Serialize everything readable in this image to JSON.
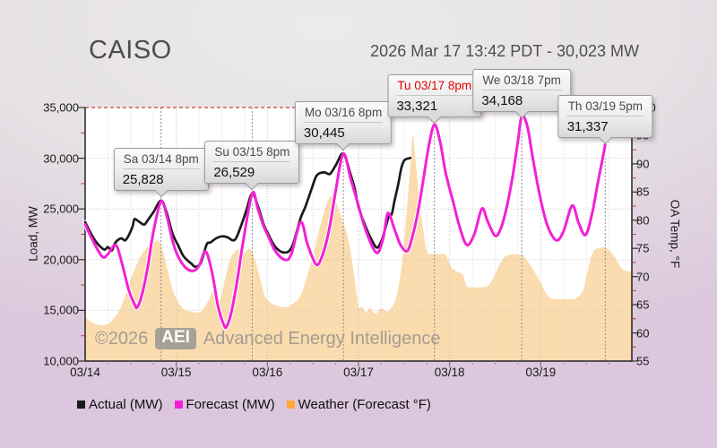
{
  "header": {
    "title": "CAISO",
    "status_line": "2026 Mar 17 13:42 PDT - 30,023 MW"
  },
  "watermark": {
    "copyright": "©2026",
    "badge": "AEI",
    "name": "Advanced Energy Intelligence"
  },
  "colors": {
    "actual": "#1a1a1a",
    "forecast": "#f320d6",
    "weather_fill": "#fbdcae",
    "weather_legend": "#ffaa33",
    "alert_line": "#cc4040",
    "callout_highlight": "#dd0000"
  },
  "axes": {
    "left_title": "Load, MW",
    "right_title": "OA Temp, °F",
    "left_tick_labels": [
      "10,000",
      "15,000",
      "20,000",
      "25,000",
      "30,000",
      "35,000"
    ],
    "left_tick_values": [
      10000,
      15000,
      20000,
      25000,
      30000,
      35000
    ],
    "right_tick_labels": [
      "55",
      "60",
      "65",
      "70",
      "75",
      "80",
      "85",
      "90",
      "95",
      "100"
    ],
    "right_tick_values": [
      55,
      60,
      65,
      70,
      75,
      80,
      85,
      90,
      95,
      100
    ],
    "x_tick_labels": [
      "03/14",
      "03/15",
      "03/16",
      "03/17",
      "03/18",
      "03/19"
    ]
  },
  "legend": [
    {
      "label": "Actual (MW)",
      "color_key": "actual"
    },
    {
      "label": "Forecast (MW)",
      "color_key": "forecast"
    },
    {
      "label": "Weather (Forecast °F)",
      "color_key": "weather_legend"
    }
  ],
  "callouts": [
    {
      "title": "Sa 03/14 8pm",
      "value": "25,828",
      "hour": 20,
      "highlight": false
    },
    {
      "title": "Su 03/15 8pm",
      "value": "26,529",
      "hour": 44,
      "highlight": false
    },
    {
      "title": "Mo 03/16 8pm",
      "value": "30,445",
      "hour": 68,
      "highlight": false
    },
    {
      "title": "Tu 03/17 8pm",
      "value": "33,321",
      "hour": 92,
      "highlight": true
    },
    {
      "title": "We 03/18 7pm",
      "value": "34,168",
      "hour": 115,
      "highlight": false
    },
    {
      "title": "Th 03/19 5pm",
      "value": "31,337",
      "hour": 137,
      "highlight": false
    }
  ],
  "chart_data": {
    "type": "line",
    "title": "CAISO",
    "subtitle": "2026 Mar 17 13:42 PDT - 30,023 MW",
    "x_axis": {
      "unit": "hours since 2026-03-14 00:00",
      "range": [
        0,
        144
      ],
      "day_labels": [
        "03/14",
        "03/15",
        "03/16",
        "03/17",
        "03/18",
        "03/19"
      ]
    },
    "y_left": {
      "label": "Load, MW",
      "range": [
        10000,
        35000
      ],
      "grid": "dotted"
    },
    "y_right": {
      "label": "OA Temp, °F",
      "range": [
        55,
        100
      ]
    },
    "legend_position": "bottom-left",
    "series": [
      {
        "name": "Actual (MW)",
        "type": "line",
        "axis": "left",
        "color_key": "actual",
        "points": [
          [
            0,
            23700
          ],
          [
            1.5,
            22600
          ],
          [
            3,
            21700
          ],
          [
            5,
            21000
          ],
          [
            6,
            21250
          ],
          [
            7,
            20900
          ],
          [
            8,
            21700
          ],
          [
            9.5,
            22100
          ],
          [
            10.5,
            21900
          ],
          [
            11.5,
            22400
          ],
          [
            12.5,
            23300
          ],
          [
            13,
            24000
          ],
          [
            14,
            23800
          ],
          [
            15.5,
            23450
          ],
          [
            16.5,
            23900
          ],
          [
            18,
            24700
          ],
          [
            20,
            25828
          ],
          [
            21.5,
            24600
          ],
          [
            23,
            22600
          ],
          [
            24.5,
            21400
          ],
          [
            26,
            20300
          ],
          [
            28,
            19600
          ],
          [
            29,
            19300
          ],
          [
            30.5,
            19700
          ],
          [
            32,
            21500
          ],
          [
            33,
            21700
          ],
          [
            34.5,
            22100
          ],
          [
            36,
            22300
          ],
          [
            37.5,
            22200
          ],
          [
            39,
            21900
          ],
          [
            40,
            22300
          ],
          [
            41.5,
            23800
          ],
          [
            42.5,
            24900
          ],
          [
            44,
            26529
          ],
          [
            45.5,
            25300
          ],
          [
            47,
            23500
          ],
          [
            48,
            22700
          ],
          [
            50,
            21300
          ],
          [
            52.5,
            20700
          ],
          [
            54.5,
            21300
          ],
          [
            56.75,
            24100
          ],
          [
            58,
            25200
          ],
          [
            59.5,
            26800
          ],
          [
            61,
            28300
          ],
          [
            63,
            28600
          ],
          [
            64.5,
            28450
          ],
          [
            66,
            29300
          ],
          [
            68,
            30445
          ],
          [
            70,
            28300
          ],
          [
            71,
            27000
          ],
          [
            72,
            25200
          ],
          [
            73.5,
            23600
          ],
          [
            75,
            22300
          ],
          [
            76.75,
            21200
          ],
          [
            78,
            21800
          ],
          [
            79,
            23000
          ],
          [
            80,
            24300
          ],
          [
            80.75,
            24500
          ],
          [
            81.5,
            25800
          ],
          [
            82.5,
            27500
          ],
          [
            83.25,
            29000
          ],
          [
            84,
            29750
          ],
          [
            84.75,
            29950
          ],
          [
            85.7,
            30023
          ]
        ]
      },
      {
        "name": "Forecast (MW)",
        "type": "line",
        "axis": "left",
        "color_key": "forecast",
        "points": [
          [
            0,
            23500
          ],
          [
            2,
            21900
          ],
          [
            4.5,
            20300
          ],
          [
            6,
            20550
          ],
          [
            7.5,
            21350
          ],
          [
            8.5,
            21200
          ],
          [
            10,
            19200
          ],
          [
            11.5,
            17000
          ],
          [
            13,
            15600
          ],
          [
            13.75,
            15300
          ],
          [
            15,
            16600
          ],
          [
            16.5,
            19300
          ],
          [
            18,
            22800
          ],
          [
            20,
            25750
          ],
          [
            21.5,
            24300
          ],
          [
            23,
            21900
          ],
          [
            24.5,
            20300
          ],
          [
            26.5,
            19200
          ],
          [
            28.5,
            18900
          ],
          [
            30,
            19400
          ],
          [
            31.75,
            20800
          ],
          [
            33.5,
            18600
          ],
          [
            35,
            15400
          ],
          [
            36.5,
            13600
          ],
          [
            37.25,
            13400
          ],
          [
            38.5,
            14800
          ],
          [
            40,
            17800
          ],
          [
            41.5,
            21500
          ],
          [
            44,
            26529
          ],
          [
            45.5,
            25000
          ],
          [
            47,
            23300
          ],
          [
            48,
            22500
          ],
          [
            50,
            20900
          ],
          [
            52.5,
            20000
          ],
          [
            54.25,
            20500
          ],
          [
            56.75,
            23700
          ],
          [
            58.5,
            21600
          ],
          [
            60,
            20100
          ],
          [
            61.3,
            19500
          ],
          [
            63,
            21000
          ],
          [
            64.5,
            23400
          ],
          [
            66,
            26800
          ],
          [
            68,
            30445
          ],
          [
            70,
            27900
          ],
          [
            72,
            25330
          ],
          [
            74,
            22800
          ],
          [
            76.75,
            20670
          ],
          [
            78.5,
            22100
          ],
          [
            79.75,
            24590
          ],
          [
            81.5,
            23000
          ],
          [
            83,
            21500
          ],
          [
            84.75,
            20830
          ],
          [
            86,
            22000
          ],
          [
            87.5,
            24400
          ],
          [
            89,
            27700
          ],
          [
            90.5,
            31200
          ],
          [
            92,
            33321
          ],
          [
            93.5,
            31600
          ],
          [
            95,
            28500
          ],
          [
            97,
            25600
          ],
          [
            98.5,
            23400
          ],
          [
            100.5,
            21460
          ],
          [
            102.5,
            22500
          ],
          [
            104.5,
            25030
          ],
          [
            106,
            23800
          ],
          [
            108,
            22350
          ],
          [
            109.5,
            23100
          ],
          [
            111,
            25100
          ],
          [
            112.5,
            28000
          ],
          [
            114,
            31700
          ],
          [
            115,
            34168
          ],
          [
            116.5,
            33100
          ],
          [
            118,
            29800
          ],
          [
            119.5,
            26800
          ],
          [
            121,
            24300
          ],
          [
            122.5,
            22700
          ],
          [
            124.3,
            21900
          ],
          [
            126,
            22800
          ],
          [
            128.3,
            25330
          ],
          [
            130,
            23600
          ],
          [
            131.8,
            22440
          ],
          [
            133.5,
            24500
          ],
          [
            135,
            27500
          ],
          [
            136,
            29400
          ],
          [
            137,
            31337
          ]
        ]
      },
      {
        "name": "Weather (Forecast °F)",
        "type": "area",
        "axis": "right",
        "color_key": "weather_fill",
        "points": [
          [
            0,
            62.8
          ],
          [
            2,
            61.8
          ],
          [
            4,
            61.4
          ],
          [
            6,
            61.6
          ],
          [
            7.5,
            62.6
          ],
          [
            9,
            64
          ],
          [
            10.5,
            66.5
          ],
          [
            12,
            69.5
          ],
          [
            13.5,
            72
          ],
          [
            15,
            74
          ],
          [
            16.5,
            75.3
          ],
          [
            18,
            76.1
          ],
          [
            19.5,
            76.3
          ],
          [
            20.5,
            74.5
          ],
          [
            21.5,
            71.8
          ],
          [
            23,
            67.8
          ],
          [
            24.5,
            65.5
          ],
          [
            26,
            64.2
          ],
          [
            28,
            63.8
          ],
          [
            30,
            63.6
          ],
          [
            31,
            64.2
          ],
          [
            32.5,
            65.8
          ],
          [
            34,
            67.6
          ],
          [
            35.5,
            65.9
          ],
          [
            37,
            70
          ],
          [
            38.5,
            73.5
          ],
          [
            40.5,
            74.9
          ],
          [
            42,
            74.3
          ],
          [
            43.5,
            74.9
          ],
          [
            45,
            72.5
          ],
          [
            46.5,
            68.5
          ],
          [
            47.5,
            66.3
          ],
          [
            49,
            65.3
          ],
          [
            51,
            64.7
          ],
          [
            53,
            64.6
          ],
          [
            55,
            65.3
          ],
          [
            56.5,
            66.3
          ],
          [
            58,
            69
          ],
          [
            59.5,
            72.5
          ],
          [
            61,
            76.5
          ],
          [
            62.5,
            80.5
          ],
          [
            64,
            83.5
          ],
          [
            65,
            84.2
          ],
          [
            66.5,
            82.5
          ],
          [
            68,
            79.5
          ],
          [
            69.5,
            76
          ],
          [
            71,
            69.5
          ],
          [
            72,
            64.8
          ],
          [
            73,
            64.6
          ],
          [
            74,
            63.6
          ],
          [
            75,
            64.4
          ],
          [
            76.5,
            63.4
          ],
          [
            78,
            64.4
          ],
          [
            79.5,
            63.8
          ],
          [
            81,
            64.8
          ],
          [
            82,
            66.5
          ],
          [
            83,
            70
          ],
          [
            84,
            76
          ],
          [
            85,
            84
          ],
          [
            85.7,
            90
          ],
          [
            86.3,
            95.2
          ],
          [
            87,
            91
          ],
          [
            88,
            84
          ],
          [
            89,
            78.5
          ],
          [
            90,
            74.5
          ],
          [
            91.5,
            74
          ],
          [
            93.5,
            74
          ],
          [
            95,
            73.8
          ],
          [
            96.5,
            71.6
          ],
          [
            98,
            70.9
          ],
          [
            99.5,
            70.3
          ],
          [
            100.5,
            68.3
          ],
          [
            102,
            68.1
          ],
          [
            104,
            68.1
          ],
          [
            106,
            68.3
          ],
          [
            107.5,
            69.8
          ],
          [
            109,
            71.9
          ],
          [
            110.5,
            73.5
          ],
          [
            112,
            73.9
          ],
          [
            114,
            73.9
          ],
          [
            115.5,
            73.6
          ],
          [
            117,
            72.3
          ],
          [
            118.5,
            70.7
          ],
          [
            120,
            68.9
          ],
          [
            121.5,
            66.9
          ],
          [
            123,
            66.1
          ],
          [
            125,
            66
          ],
          [
            127,
            66
          ],
          [
            129,
            66.1
          ],
          [
            131,
            67.3
          ],
          [
            132,
            69.9
          ],
          [
            133,
            72.8
          ],
          [
            134,
            74.6
          ],
          [
            135.5,
            75.1
          ],
          [
            137.5,
            75
          ],
          [
            139,
            73.9
          ],
          [
            139.8,
            73.2
          ],
          [
            141,
            71.7
          ],
          [
            142,
            71.1
          ],
          [
            144,
            70.9
          ]
        ]
      }
    ],
    "annotations": [
      {
        "label": "Sa 03/14 8pm",
        "value": 25828,
        "hour": 20
      },
      {
        "label": "Su 03/15 8pm",
        "value": 26529,
        "hour": 44
      },
      {
        "label": "Mo 03/16 8pm",
        "value": 30445,
        "hour": 68
      },
      {
        "label": "Tu 03/17 8pm",
        "value": 33321,
        "hour": 92
      },
      {
        "label": "We 03/18 7pm",
        "value": 34168,
        "hour": 115
      },
      {
        "label": "Th 03/19 5pm",
        "value": 31337,
        "hour": 137
      }
    ]
  }
}
